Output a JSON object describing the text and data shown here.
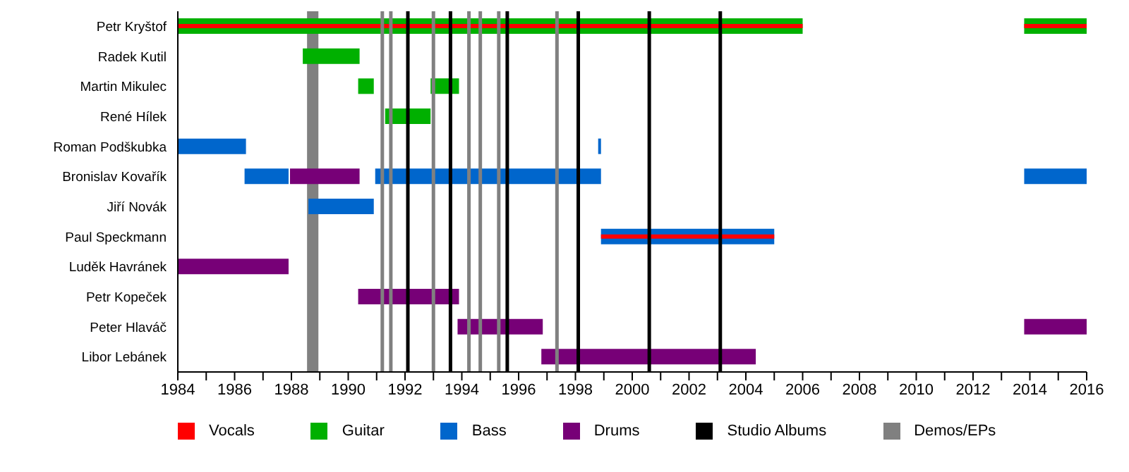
{
  "chart_data": {
    "type": "bar",
    "orientation": "horizontal",
    "legend": "bottom",
    "categories": [
      "Petr Kryštof",
      "Radek Kutil",
      "Martin Mikulec",
      "René Hílek",
      "Roman Podškubka",
      "Bronislav Kovařík",
      "Jiří Novák",
      "Paul Speckmann",
      "Luděk Havránek",
      "Petr Kopeček",
      "Peter Hlaváč",
      "Libor Lebánek"
    ],
    "xlim": [
      1984,
      2016
    ],
    "xticks": [
      1984,
      {
        "value": 1985,
        "label": null
      },
      1986,
      {
        "value": 1987,
        "label": null
      },
      1988,
      {
        "value": 1989,
        "label": null
      },
      1990,
      {
        "value": 1991,
        "label": null
      },
      1992,
      {
        "value": 1993,
        "label": null
      },
      1994,
      {
        "value": 1995,
        "label": null
      },
      1996,
      {
        "value": 1997,
        "label": null
      },
      1998,
      {
        "value": 1999,
        "label": null
      },
      2000,
      {
        "value": 2001,
        "label": null
      },
      2002,
      {
        "value": 2003,
        "label": null
      },
      2004,
      {
        "value": 2005,
        "label": null
      },
      2006,
      {
        "value": 2007,
        "label": null
      },
      2008,
      {
        "value": 2009,
        "label": null
      },
      2010,
      {
        "value": 2011,
        "label": null
      },
      2012,
      {
        "value": 2013,
        "label": null
      },
      2014,
      {
        "value": 2015,
        "label": null
      },
      2016
    ],
    "series": [
      {
        "name": "Vocals",
        "color": "#ff0000",
        "base": [
          1984,
          null,
          null,
          null,
          null,
          null,
          null,
          1998.9,
          null,
          null,
          null,
          null
        ],
        "values": [
          22.0,
          null,
          null,
          null,
          null,
          null,
          null,
          6.1,
          null,
          null,
          null,
          null
        ]
      },
      {
        "color": "#ff0000",
        "base": [
          2013.8,
          null,
          null,
          null,
          null,
          null,
          null,
          null,
          null,
          null,
          null,
          null
        ],
        "values": [
          2.2,
          null,
          null,
          null,
          null,
          null,
          null,
          null,
          null,
          null,
          null,
          null
        ]
      },
      {
        "name": "Guitar",
        "color": "#00b000",
        "base": [
          1984,
          1988.4,
          1990.35,
          1991.3,
          null,
          null,
          null,
          null,
          null,
          null,
          null,
          null
        ],
        "values": [
          22.0,
          2.0,
          0.55,
          1.6,
          null,
          null,
          null,
          null,
          null,
          null,
          null,
          null
        ]
      },
      {
        "color": "#00b000",
        "base": [
          2013.8,
          null,
          1992.9,
          null,
          null,
          null,
          null,
          null,
          null,
          null,
          null,
          null
        ],
        "values": [
          2.2,
          null,
          1.0,
          null,
          null,
          null,
          null,
          null,
          null,
          null,
          null,
          null
        ]
      },
      {
        "name": "Bass",
        "color": "#0066cc",
        "base": [
          null,
          null,
          null,
          null,
          1984,
          1986.35,
          1988.6,
          1998.9,
          null,
          null,
          null,
          null
        ],
        "values": [
          null,
          null,
          null,
          null,
          2.4,
          1.55,
          2.3,
          6.1,
          null,
          null,
          null,
          null
        ]
      },
      {
        "color": "#0066cc",
        "base": [
          null,
          null,
          null,
          null,
          1998.8,
          1990.95,
          null,
          null,
          null,
          null,
          null,
          null
        ],
        "values": [
          null,
          null,
          null,
          null,
          0.1,
          7.95,
          null,
          null,
          null,
          null,
          null,
          null
        ]
      },
      {
        "color": "#0066cc",
        "base": [
          null,
          null,
          null,
          null,
          null,
          2013.8,
          null,
          null,
          null,
          null,
          null,
          null
        ],
        "values": [
          null,
          null,
          null,
          null,
          null,
          2.2,
          null,
          null,
          null,
          null,
          null,
          null
        ]
      },
      {
        "name": "Drums",
        "color": "#770077",
        "base": [
          null,
          null,
          null,
          null,
          null,
          1987.95,
          null,
          null,
          1984,
          1990.35,
          1993.85,
          1996.8
        ],
        "values": [
          null,
          null,
          null,
          null,
          null,
          2.45,
          null,
          null,
          3.9,
          3.55,
          3.0,
          7.55
        ]
      },
      {
        "color": "#770077",
        "base": [
          null,
          null,
          null,
          null,
          null,
          null,
          null,
          null,
          null,
          null,
          2013.8,
          null
        ],
        "values": [
          null,
          null,
          null,
          null,
          null,
          null,
          null,
          null,
          null,
          null,
          2.2,
          null
        ]
      }
    ],
    "ref_lines": [
      {
        "axis": "x",
        "value": 1992.1,
        "color": "#000000",
        "label": "Studio Albums"
      },
      {
        "axis": "x",
        "value": 1993.6,
        "color": "#000000"
      },
      {
        "axis": "x",
        "value": 1995.6,
        "color": "#000000"
      },
      {
        "axis": "x",
        "value": 1998.1,
        "color": "#000000"
      },
      {
        "axis": "x",
        "value": 2000.6,
        "color": "#000000"
      },
      {
        "axis": "x",
        "value": 2003.1,
        "color": "#000000"
      },
      {
        "axis": "x",
        "value": 1991.2,
        "color": "#808080",
        "label": "Demos/EPs"
      },
      {
        "axis": "x",
        "value": 1991.5,
        "color": "#808080"
      },
      {
        "axis": "x",
        "value": 1993.0,
        "color": "#808080"
      },
      {
        "axis": "x",
        "value": 1994.25,
        "color": "#808080"
      },
      {
        "axis": "x",
        "value": 1994.65,
        "color": "#808080"
      },
      {
        "axis": "x",
        "value": 1995.3,
        "color": "#808080"
      },
      {
        "axis": "x",
        "value": 1997.35,
        "color": "#808080"
      }
    ],
    "bands": [
      {
        "axis": "x",
        "from": 1988.55,
        "to": 1988.95,
        "color": "#808080"
      }
    ]
  }
}
